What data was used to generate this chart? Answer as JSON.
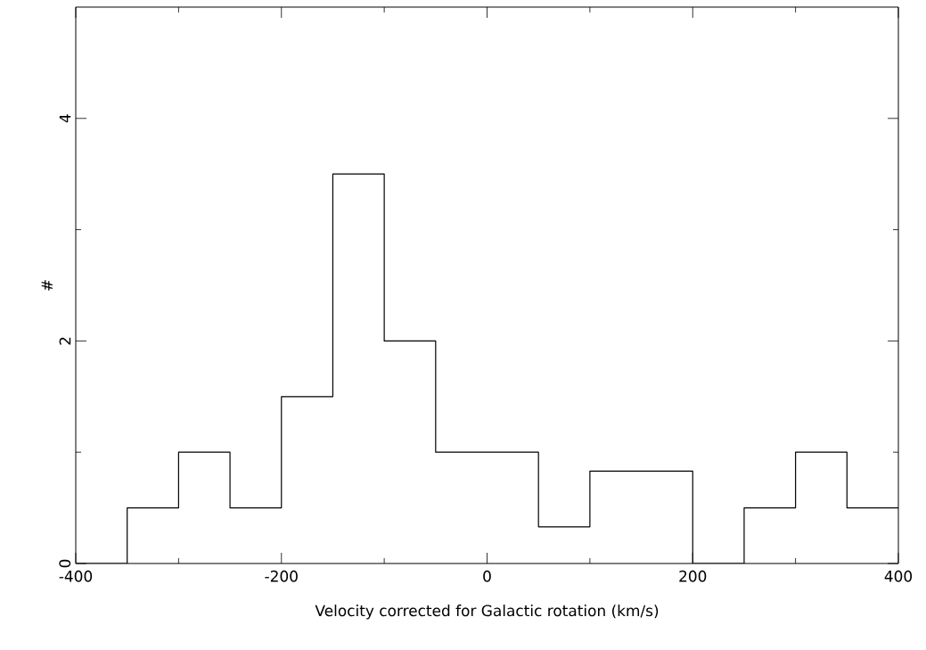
{
  "chart_data": {
    "type": "histogram",
    "xlabel": "Velocity corrected for Galactic rotation (km/s)",
    "ylabel": "#",
    "bins": [
      -400,
      -350,
      -300,
      -250,
      -200,
      -150,
      -100,
      -50,
      0,
      50,
      100,
      150,
      200,
      250,
      300,
      350,
      400
    ],
    "values": [
      0,
      0.5,
      1,
      0.5,
      1.5,
      3.5,
      2,
      1,
      1,
      0.33,
      0.83,
      0.83,
      0,
      0.5,
      1,
      0.5
    ],
    "color": "#000000",
    "xlim": [
      -400,
      400
    ],
    "ylim": [
      0,
      5
    ],
    "xticks": [
      -400,
      -200,
      0,
      200,
      400
    ],
    "yticks": [
      0,
      2,
      4
    ],
    "grid": false
  }
}
